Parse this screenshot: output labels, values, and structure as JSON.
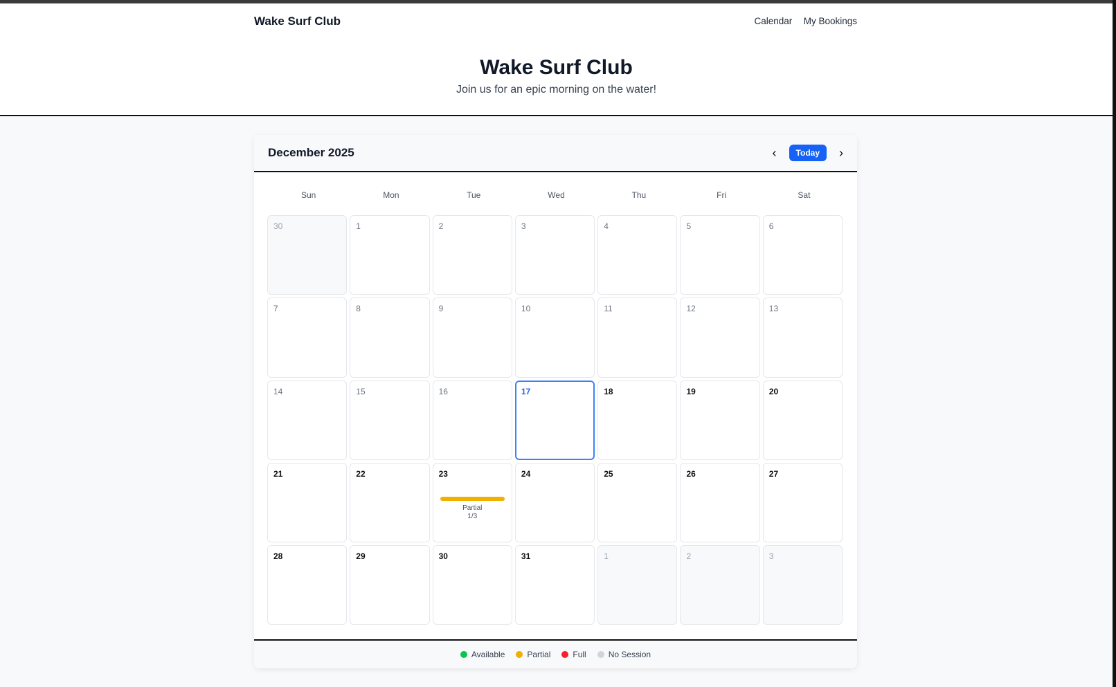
{
  "nav": {
    "brand": "Wake Surf Club",
    "links": [
      "Calendar",
      "My Bookings"
    ]
  },
  "hero": {
    "title": "Wake Surf Club",
    "subtitle": "Join us for an epic morning on the water!"
  },
  "calendar": {
    "month": "December 2025",
    "today_label": "Today",
    "prev_icon": "chevron-left-icon",
    "next_icon": "chevron-right-icon",
    "weekdays": [
      "Sun",
      "Mon",
      "Tue",
      "Wed",
      "Thu",
      "Fri",
      "Sat"
    ],
    "days": [
      {
        "n": "30",
        "t": "other"
      },
      {
        "n": "1",
        "t": "past"
      },
      {
        "n": "2",
        "t": "past"
      },
      {
        "n": "3",
        "t": "past"
      },
      {
        "n": "4",
        "t": "past"
      },
      {
        "n": "5",
        "t": "past"
      },
      {
        "n": "6",
        "t": "past"
      },
      {
        "n": "7",
        "t": "past"
      },
      {
        "n": "8",
        "t": "past"
      },
      {
        "n": "9",
        "t": "past"
      },
      {
        "n": "10",
        "t": "past"
      },
      {
        "n": "11",
        "t": "past"
      },
      {
        "n": "12",
        "t": "past"
      },
      {
        "n": "13",
        "t": "past"
      },
      {
        "n": "14",
        "t": "past"
      },
      {
        "n": "15",
        "t": "past"
      },
      {
        "n": "16",
        "t": "past"
      },
      {
        "n": "17",
        "t": "today"
      },
      {
        "n": "18",
        "t": ""
      },
      {
        "n": "19",
        "t": ""
      },
      {
        "n": "20",
        "t": ""
      },
      {
        "n": "21",
        "t": ""
      },
      {
        "n": "22",
        "t": ""
      },
      {
        "n": "23",
        "t": "",
        "session": {
          "status": "Partial",
          "count": "1/3",
          "fill": 0.333
        }
      },
      {
        "n": "24",
        "t": ""
      },
      {
        "n": "25",
        "t": ""
      },
      {
        "n": "26",
        "t": ""
      },
      {
        "n": "27",
        "t": ""
      },
      {
        "n": "28",
        "t": ""
      },
      {
        "n": "29",
        "t": ""
      },
      {
        "n": "30",
        "t": ""
      },
      {
        "n": "31",
        "t": ""
      },
      {
        "n": "1",
        "t": "other"
      },
      {
        "n": "2",
        "t": "other"
      },
      {
        "n": "3",
        "t": "other"
      }
    ]
  },
  "legend": [
    {
      "label": "Available",
      "color": "#0bc44f"
    },
    {
      "label": "Partial",
      "color": "#f0b000"
    },
    {
      "label": "Full",
      "color": "#f5222d"
    },
    {
      "label": "No Session",
      "color": "#d1d5db"
    }
  ]
}
